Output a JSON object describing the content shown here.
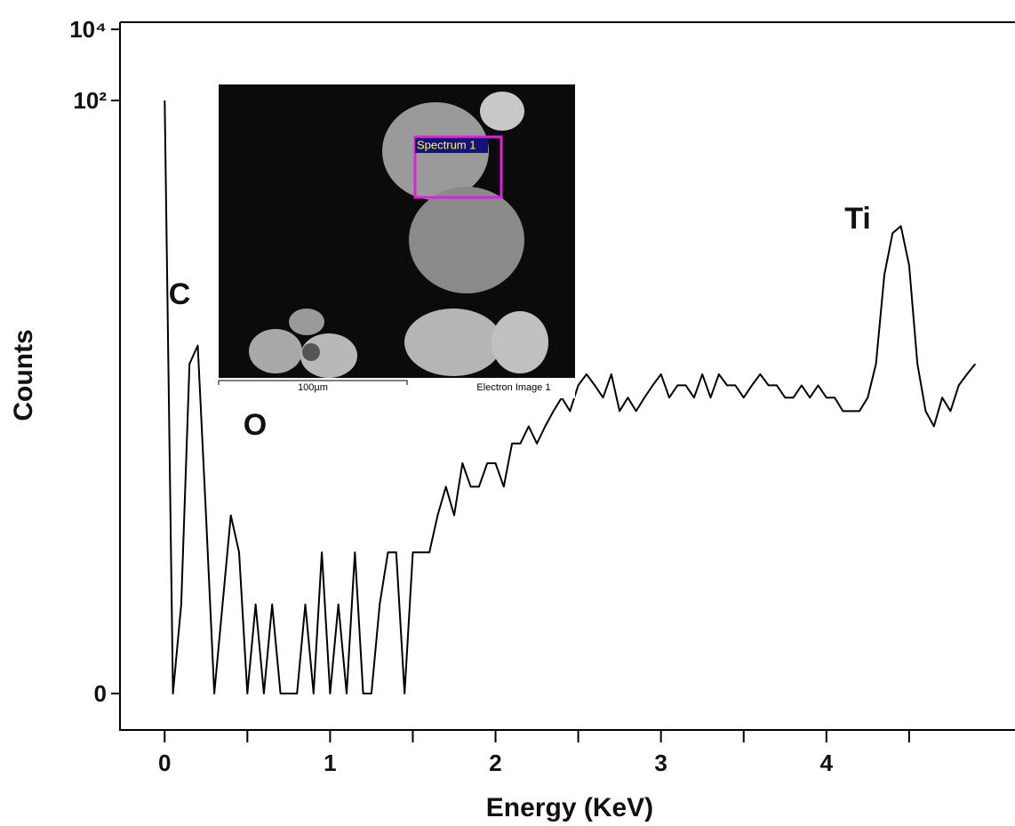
{
  "chart_data": {
    "type": "line",
    "xlabel": "Energy (KeV)",
    "ylabel": "Counts",
    "xlim": [
      -0.27,
      5.14
    ],
    "xticks": [
      0,
      1,
      2,
      3,
      4
    ],
    "xminorticks": [
      0.5,
      1.5,
      2.5,
      3.5,
      4.5
    ],
    "ylim": [
      0,
      10000
    ],
    "yscale": "log1p",
    "yticks": [
      0,
      {
        "value": 100,
        "label": "10²"
      },
      {
        "value": 10000,
        "label": "10⁴"
      }
    ],
    "color": "#000000",
    "x": [
      0,
      0.05,
      0.1,
      0.15,
      0.2,
      0.25,
      0.3,
      0.35,
      0.4,
      0.45,
      0.5,
      0.55,
      0.6,
      0.65,
      0.7,
      0.75,
      0.8,
      0.85,
      0.9,
      0.95,
      1.0,
      1.05,
      1.1,
      1.15,
      1.2,
      1.25,
      1.3,
      1.35,
      1.4,
      1.45,
      1.5,
      1.55,
      1.6,
      1.65,
      1.7,
      1.75,
      1.8,
      1.85,
      1.9,
      1.95,
      2.0,
      2.05,
      2.1,
      2.15,
      2.2,
      2.25,
      2.3,
      2.35,
      2.4,
      2.45,
      2.5,
      2.55,
      2.6,
      2.65,
      2.7,
      2.75,
      2.8,
      2.85,
      2.9,
      2.95,
      3.0,
      3.05,
      3.1,
      3.15,
      3.2,
      3.25,
      3.3,
      3.35,
      3.4,
      3.45,
      3.5,
      3.55,
      3.6,
      3.65,
      3.7,
      3.75,
      3.8,
      3.85,
      3.9,
      3.95,
      4.0,
      4.05,
      4.1,
      4.15,
      4.2,
      4.25,
      4.3,
      4.35,
      4.4,
      4.45,
      4.5,
      4.55,
      4.6,
      4.65,
      4.7,
      4.75,
      4.8,
      4.85,
      4.9
    ],
    "values": [
      100,
      0,
      1,
      12,
      14,
      3,
      0,
      1,
      3,
      2,
      0,
      1,
      0,
      1,
      0,
      0,
      0,
      1,
      0,
      2,
      0,
      1,
      0,
      2,
      0,
      0,
      1,
      2,
      2,
      0,
      2,
      2,
      2,
      3,
      4,
      3,
      5,
      4,
      4,
      5,
      5,
      4,
      6,
      6,
      7,
      6,
      7,
      8,
      9,
      8,
      10,
      11,
      10,
      9,
      11,
      8,
      9,
      8,
      9,
      10,
      11,
      9,
      10,
      10,
      9,
      11,
      9,
      11,
      10,
      10,
      9,
      10,
      11,
      10,
      10,
      9,
      9,
      10,
      9,
      10,
      9,
      9,
      8,
      8,
      8,
      9,
      12,
      25,
      35,
      37,
      27,
      12,
      8,
      7,
      9,
      8,
      10,
      11,
      12
    ],
    "annotations": [
      "C",
      "O",
      "Ti"
    ]
  },
  "inset": {
    "box_label": "Spectrum 1",
    "scale_label": "100µm",
    "image_label": "Electron Image 1"
  }
}
